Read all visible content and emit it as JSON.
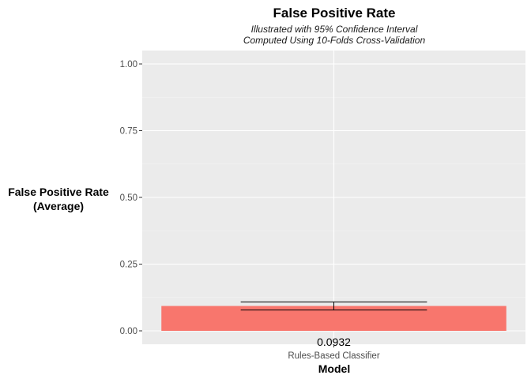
{
  "chart_data": {
    "type": "bar",
    "title": "False Positive Rate",
    "subtitle_lines": [
      "Illustrated with 95% Confidence Interval",
      "Computed Using 10-Folds Cross-Validation"
    ],
    "xlabel": "Model",
    "ylabel_lines": [
      "False Positive Rate",
      "(Average)"
    ],
    "categories": [
      "Rules-Based Classifier"
    ],
    "values": [
      0.0932
    ],
    "value_labels": [
      "0.0932"
    ],
    "error_bars": [
      {
        "lower": 0.0782,
        "upper": 0.1082
      }
    ],
    "ylim": [
      0,
      1
    ],
    "yticks": [
      0,
      0.25,
      0.5,
      0.75,
      1.0
    ],
    "ytick_labels": [
      "0.00",
      "0.25",
      "0.50",
      "0.75",
      "1.00"
    ],
    "grid": true,
    "legend": "none",
    "colors": {
      "bar": "#f8766d",
      "panel": "#ebebeb",
      "grid_major": "#ffffff",
      "error_bar": "#000000"
    }
  }
}
